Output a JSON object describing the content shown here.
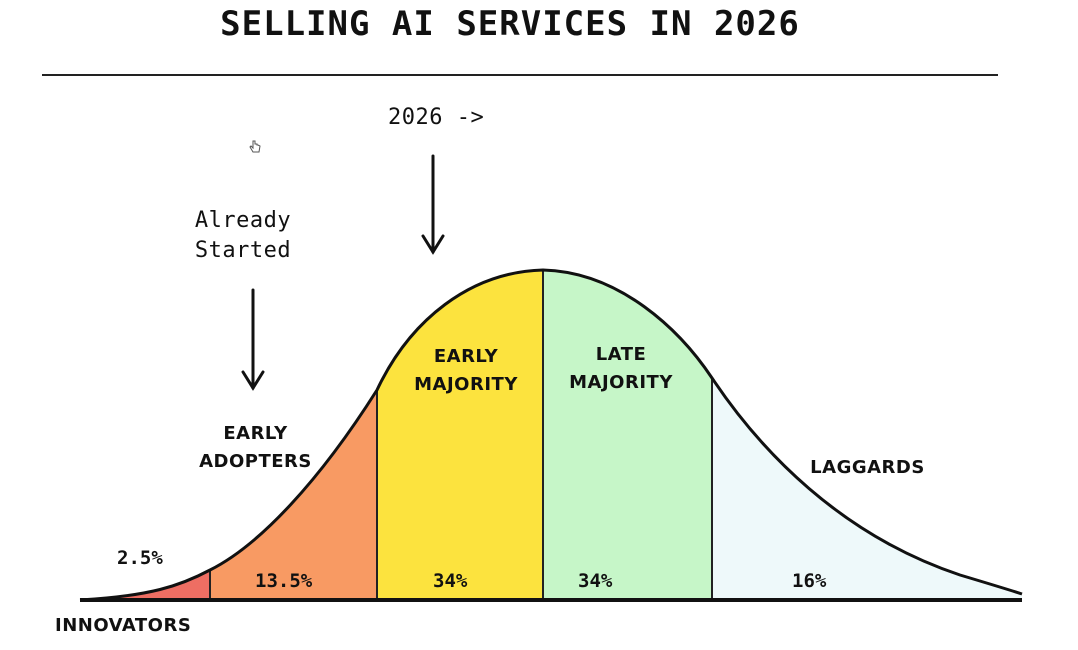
{
  "title": "SELLING AI SERVICES IN 2026",
  "annotations": {
    "arrow_2026": "2026 ->",
    "already_started": "Already\nStarted"
  },
  "segments": [
    {
      "name": "INNOVATORS",
      "percent": "2.5%",
      "color": "#ee6e63"
    },
    {
      "name": "EARLY\nADOPTERS",
      "percent": "13.5%",
      "color": "#f89a63"
    },
    {
      "name": "EARLY\nMAJORITY",
      "percent": "34%",
      "color": "#fce33e"
    },
    {
      "name": "LATE\nMAJORITY",
      "percent": "34%",
      "color": "#c6f6c8"
    },
    {
      "name": "LAGGARDS",
      "percent": "16%",
      "color": "#eef9fa"
    }
  ]
}
